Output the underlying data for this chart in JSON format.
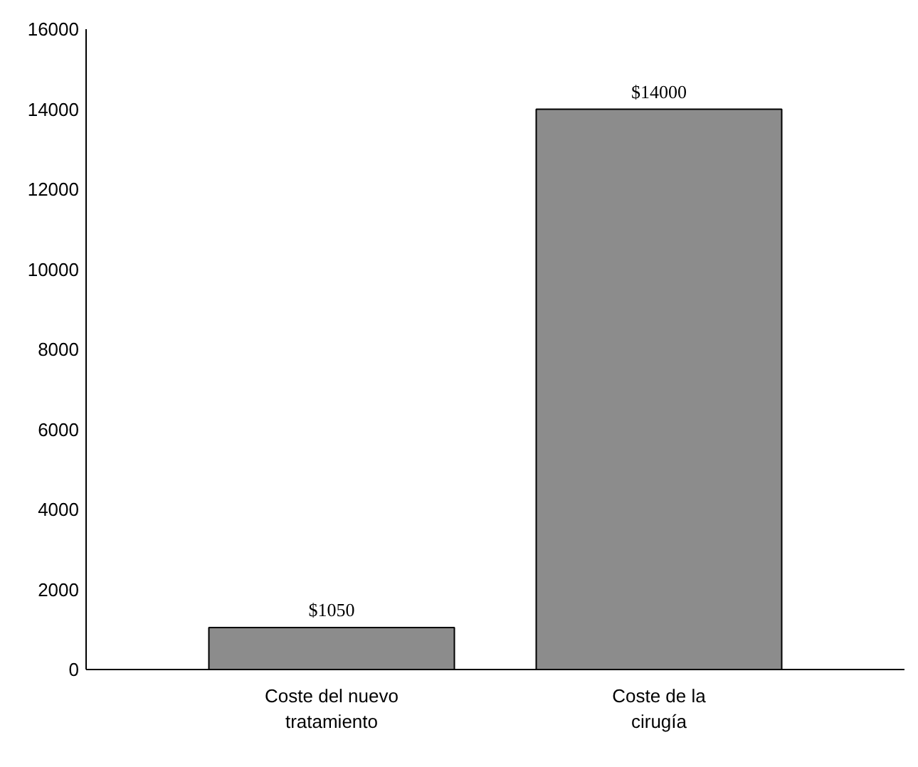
{
  "chart_data": {
    "type": "bar",
    "categories": [
      "Coste del nuevo tratamiento",
      "Coste de la cirugía"
    ],
    "values": [
      1050,
      14000
    ],
    "value_labels": [
      "$1050",
      "$14000"
    ],
    "color": "#8c8c8c",
    "ylim": [
      0,
      16000
    ],
    "yticks": [
      0,
      2000,
      4000,
      6000,
      8000,
      10000,
      12000,
      14000,
      16000
    ],
    "grid": false
  }
}
